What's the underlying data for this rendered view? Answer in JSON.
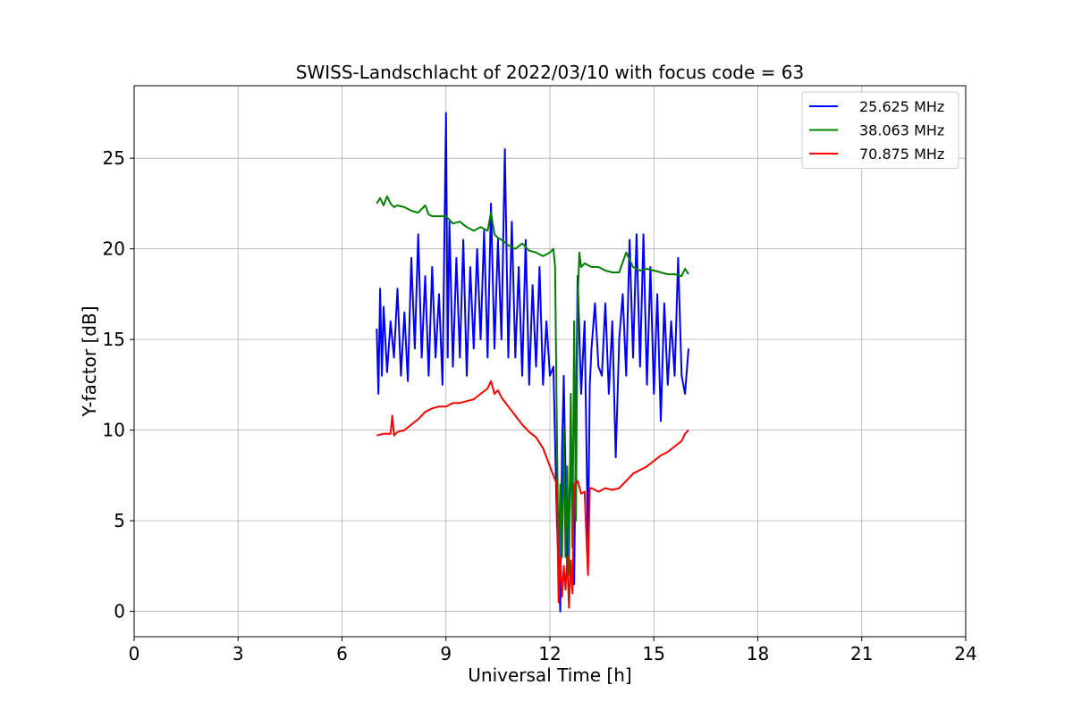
{
  "chart_data": {
    "type": "line",
    "title": "SWISS-Landschlacht of 2022/03/10 with focus code = 63",
    "xlabel": "Universal Time [h]",
    "ylabel": "Y-factor [dB]",
    "xlim": [
      0,
      24
    ],
    "ylim": [
      -1.4,
      29
    ],
    "xticks": [
      0,
      3,
      6,
      9,
      12,
      15,
      18,
      21,
      24
    ],
    "yticks": [
      0,
      5,
      10,
      15,
      20,
      25
    ],
    "grid": true,
    "legend_position": "top-right",
    "series": [
      {
        "name": "25.625 MHz",
        "color": "#0000ff",
        "x": [
          7.0,
          7.05,
          7.1,
          7.15,
          7.2,
          7.3,
          7.4,
          7.5,
          7.6,
          7.7,
          7.8,
          7.9,
          8.0,
          8.1,
          8.2,
          8.3,
          8.4,
          8.5,
          8.6,
          8.7,
          8.8,
          8.9,
          9.0,
          9.05,
          9.1,
          9.2,
          9.3,
          9.4,
          9.5,
          9.6,
          9.7,
          9.8,
          9.9,
          10.0,
          10.1,
          10.2,
          10.3,
          10.4,
          10.5,
          10.6,
          10.7,
          10.8,
          10.9,
          11.0,
          11.1,
          11.2,
          11.3,
          11.4,
          11.5,
          11.6,
          11.7,
          11.8,
          11.9,
          12.0,
          12.1,
          12.2,
          12.3,
          12.35,
          12.4,
          12.5,
          12.6,
          12.7,
          12.8,
          12.9,
          13.0,
          13.1,
          13.15,
          13.2,
          13.3,
          13.4,
          13.5,
          13.6,
          13.7,
          13.8,
          13.9,
          14.0,
          14.1,
          14.2,
          14.3,
          14.4,
          14.5,
          14.6,
          14.7,
          14.8,
          14.9,
          15.0,
          15.1,
          15.2,
          15.3,
          15.4,
          15.5,
          15.6,
          15.7,
          15.8,
          15.9,
          16.0
        ],
        "y": [
          15.6,
          12.0,
          17.8,
          13.0,
          16.8,
          13.2,
          16.0,
          14.0,
          17.8,
          13.0,
          16.5,
          12.7,
          19.5,
          14.5,
          20.8,
          14.0,
          18.5,
          13.0,
          19.0,
          14.0,
          17.5,
          12.5,
          27.5,
          14.0,
          21.5,
          13.5,
          19.5,
          14.0,
          20.5,
          13.0,
          19.0,
          14.5,
          20.0,
          15.0,
          21.0,
          14.0,
          22.5,
          14.5,
          20.5,
          15.0,
          25.5,
          14.0,
          21.5,
          14.0,
          19.0,
          13.0,
          20.5,
          12.5,
          18.0,
          13.5,
          19.0,
          12.5,
          16.0,
          13.0,
          13.5,
          5.0,
          0.0,
          9.0,
          13.0,
          2.0,
          8.5,
          1.5,
          18.5,
          12.0,
          16.0,
          3.5,
          12.5,
          14.5,
          17.0,
          13.5,
          13.0,
          17.0,
          12.0,
          16.0,
          8.5,
          15.0,
          17.5,
          13.0,
          20.5,
          14.0,
          20.8,
          13.5,
          20.8,
          12.5,
          19.0,
          12.0,
          17.5,
          10.5,
          17.0,
          12.5,
          16.0,
          13.0,
          19.5,
          13.0,
          12.0,
          14.5
        ]
      },
      {
        "name": "38.063 MHz",
        "color": "#008000",
        "x": [
          7.0,
          7.1,
          7.2,
          7.3,
          7.4,
          7.5,
          7.6,
          7.8,
          8.0,
          8.2,
          8.4,
          8.5,
          8.6,
          8.8,
          9.0,
          9.2,
          9.4,
          9.6,
          9.8,
          10.0,
          10.2,
          10.3,
          10.4,
          10.5,
          10.6,
          10.8,
          11.0,
          11.2,
          11.4,
          11.6,
          11.8,
          12.0,
          12.1,
          12.15,
          12.2,
          12.25,
          12.3,
          12.35,
          12.4,
          12.45,
          12.5,
          12.55,
          12.6,
          12.65,
          12.7,
          12.75,
          12.8,
          12.85,
          12.9,
          13.0,
          13.2,
          13.4,
          13.6,
          13.8,
          14.0,
          14.2,
          14.4,
          14.6,
          14.8,
          15.0,
          15.2,
          15.4,
          15.6,
          15.8,
          15.9,
          16.0
        ],
        "y": [
          22.5,
          22.8,
          22.4,
          22.9,
          22.5,
          22.3,
          22.4,
          22.3,
          22.1,
          22.0,
          22.4,
          21.9,
          21.8,
          21.8,
          21.8,
          21.4,
          21.5,
          21.2,
          21.0,
          21.2,
          21.0,
          22.0,
          20.8,
          20.6,
          20.5,
          20.2,
          20.0,
          20.3,
          19.9,
          19.8,
          19.6,
          19.8,
          20.0,
          19.0,
          10.0,
          2.5,
          7.0,
          3.0,
          10.0,
          3.0,
          8.0,
          2.0,
          12.0,
          3.5,
          16.0,
          5.0,
          17.0,
          19.8,
          19.0,
          19.2,
          19.0,
          19.0,
          18.8,
          18.7,
          18.7,
          19.8,
          19.0,
          18.8,
          18.9,
          18.8,
          18.7,
          18.6,
          18.6,
          18.5,
          18.9,
          18.6
        ]
      },
      {
        "name": "70.875 MHz",
        "color": "#ff0000",
        "x": [
          7.0,
          7.2,
          7.4,
          7.45,
          7.5,
          7.6,
          7.8,
          8.0,
          8.2,
          8.4,
          8.6,
          8.8,
          9.0,
          9.2,
          9.4,
          9.6,
          9.8,
          10.0,
          10.2,
          10.3,
          10.4,
          10.5,
          10.6,
          10.8,
          11.0,
          11.2,
          11.4,
          11.6,
          11.8,
          12.0,
          12.1,
          12.2,
          12.25,
          12.3,
          12.35,
          12.4,
          12.45,
          12.5,
          12.55,
          12.6,
          12.65,
          12.7,
          12.8,
          12.9,
          13.0,
          13.1,
          13.15,
          13.2,
          13.4,
          13.6,
          13.8,
          14.0,
          14.2,
          14.4,
          14.6,
          14.8,
          15.0,
          15.2,
          15.4,
          15.6,
          15.8,
          15.9,
          16.0
        ],
        "y": [
          9.7,
          9.8,
          9.8,
          10.8,
          9.7,
          9.9,
          10.0,
          10.3,
          10.6,
          11.0,
          11.2,
          11.3,
          11.3,
          11.5,
          11.5,
          11.6,
          11.7,
          12.0,
          12.3,
          12.7,
          12.0,
          12.2,
          11.8,
          11.3,
          10.8,
          10.3,
          9.9,
          9.6,
          9.0,
          8.0,
          7.5,
          7.0,
          0.5,
          3.0,
          0.8,
          2.5,
          1.2,
          3.0,
          0.2,
          2.8,
          1.0,
          7.0,
          7.2,
          6.5,
          6.6,
          2.0,
          6.8,
          6.8,
          6.6,
          6.8,
          6.7,
          6.8,
          7.2,
          7.6,
          7.8,
          8.0,
          8.3,
          8.6,
          8.8,
          9.1,
          9.4,
          9.8,
          10.0
        ]
      }
    ]
  }
}
